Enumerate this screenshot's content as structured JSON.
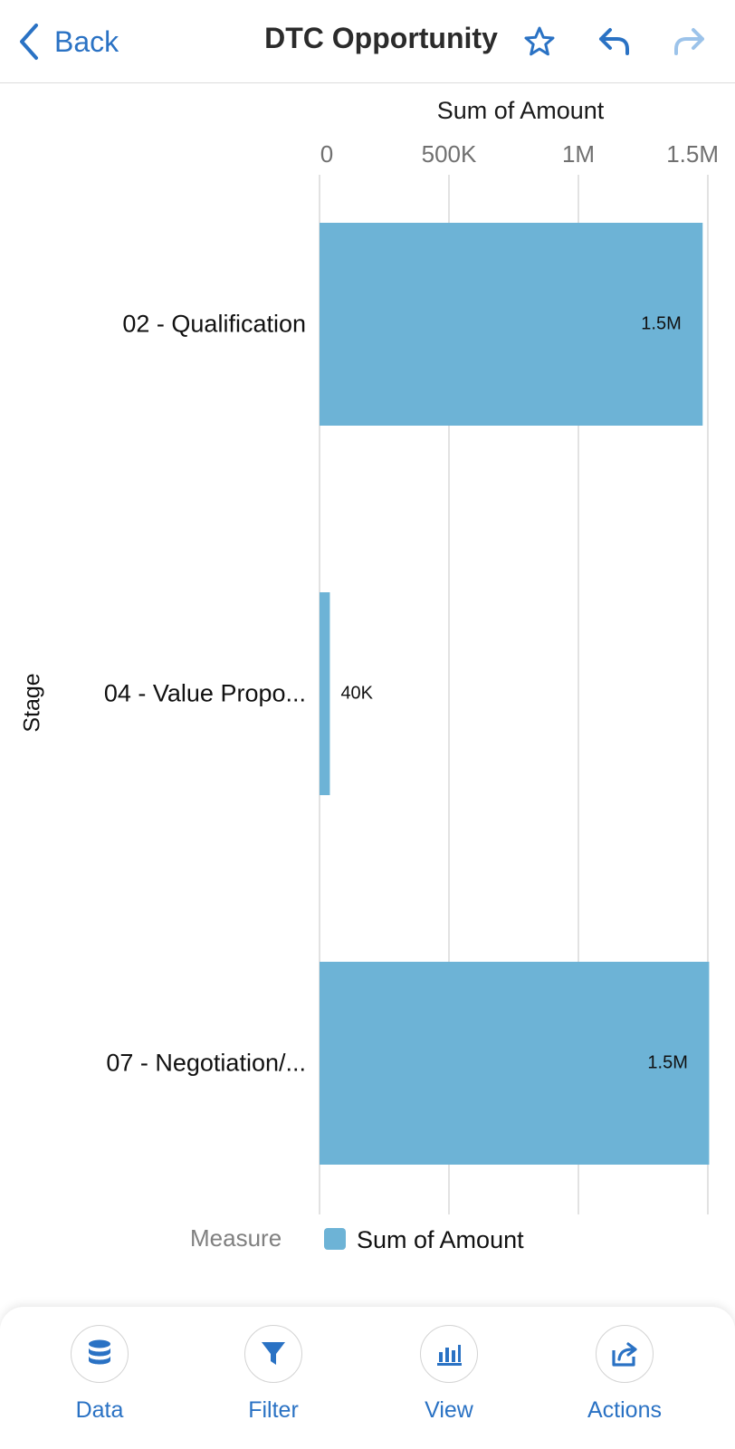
{
  "header": {
    "back_label": "Back",
    "title": "DTC Opportunity",
    "accent_color": "#2a72c4",
    "icons": [
      "star-icon",
      "undo-icon",
      "redo-icon"
    ]
  },
  "chart_data": {
    "type": "bar",
    "orientation": "horizontal",
    "xlabel": "Sum of Amount",
    "ylabel": "Stage",
    "xlim": [
      0,
      1500000
    ],
    "xticks": [
      0,
      500000,
      1000000,
      1500000
    ],
    "xtick_labels": [
      "0",
      "500K",
      "1M",
      "1.5M"
    ],
    "categories": [
      "02 - Qualification",
      "04 - Value Propo...",
      "07 - Negotiation/..."
    ],
    "series": [
      {
        "name": "Sum of Amount",
        "values": [
          1480000,
          40000,
          1505000
        ],
        "data_labels": [
          "1.5M",
          "40K",
          "1.5M"
        ],
        "color": "#6db3d6"
      }
    ],
    "grid": true,
    "legend": {
      "position": "bottom",
      "title": "Measure",
      "entries": [
        "Sum of Amount"
      ]
    }
  },
  "tabs": [
    {
      "label": "Data",
      "icon": "database-icon"
    },
    {
      "label": "Filter",
      "icon": "filter-icon"
    },
    {
      "label": "View",
      "icon": "bar-chart-icon"
    },
    {
      "label": "Actions",
      "icon": "share-icon"
    }
  ]
}
